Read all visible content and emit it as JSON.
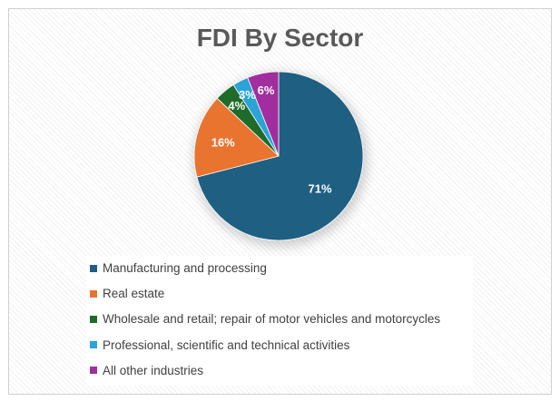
{
  "chart_data": {
    "type": "pie",
    "title": "FDI By Sector",
    "categories": [
      "Manufacturing and processing",
      "Real estate",
      "Wholesale and retail; repair of motor vehicles and motorcycles",
      "Professional, scientific and technical activities",
      "All other industries"
    ],
    "values": [
      71,
      16,
      4,
      3,
      6
    ],
    "data_labels": [
      "71%",
      "16%",
      "4%",
      "3%",
      "6%"
    ],
    "colors": [
      "#1f5f82",
      "#e8742f",
      "#1e6b2a",
      "#2aa3d8",
      "#a02e9e"
    ],
    "legend_position": "bottom"
  }
}
